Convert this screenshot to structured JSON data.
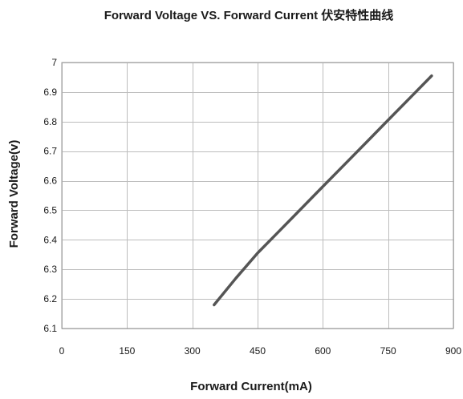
{
  "chart_data": {
    "type": "line",
    "title": "Forward  Voltage  VS. Forward Current   伏安特性曲线",
    "xlabel": "Forward Current(mA)",
    "ylabel": "Forward Voltage(v)",
    "xlim": [
      0,
      900
    ],
    "ylim": [
      6.1,
      7.0
    ],
    "x_ticks": [
      "0",
      "150",
      "300",
      "450",
      "600",
      "750",
      "900"
    ],
    "y_ticks": [
      "6.1",
      "6.2",
      "6.3",
      "6.4",
      "6.5",
      "6.6",
      "6.7",
      "6.8",
      "6.9",
      "7"
    ],
    "grid": true,
    "legend": "none",
    "series": [
      {
        "color": "#555555",
        "x": [
          350,
          400,
          450,
          500,
          550,
          600,
          650,
          700,
          750,
          800,
          850
        ],
        "y": [
          6.18,
          6.27,
          6.355,
          6.43,
          6.505,
          6.58,
          6.655,
          6.73,
          6.805,
          6.88,
          6.955
        ]
      }
    ]
  }
}
